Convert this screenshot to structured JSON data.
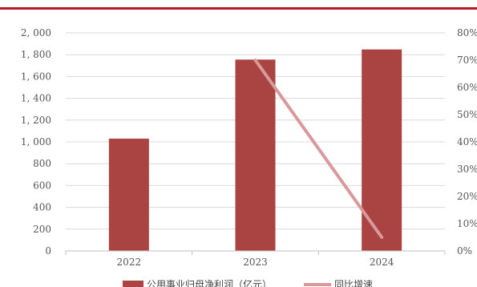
{
  "colors": {
    "header_rule": "#b01e24",
    "bar": "#a94442",
    "line": "#d9999b",
    "grid": "#d9d9d9",
    "text": "#555555"
  },
  "chart_data": {
    "type": "bar",
    "categories": [
      "2022",
      "2023",
      "2024"
    ],
    "series": [
      {
        "name": "公用事业归母净利润（亿元）",
        "type": "bar",
        "axis": "left",
        "values": [
          1030,
          1755,
          1848
        ]
      },
      {
        "name": "同比增速",
        "type": "line",
        "axis": "right",
        "values": [
          null,
          0.7,
          0.05
        ]
      }
    ],
    "y_left": {
      "min": 0,
      "max": 2000,
      "step": 200,
      "tick_labels": [
        "0",
        "200",
        "400",
        "600",
        "800",
        "1, 000",
        "1, 200",
        "1, 400",
        "1, 600",
        "1, 800",
        "2, 000"
      ]
    },
    "y_right": {
      "min": 0,
      "max": 0.8,
      "step": 0.1,
      "tick_labels": [
        "0%",
        "10%",
        "20%",
        "30%",
        "40%",
        "50%",
        "60%",
        "70%",
        "80%"
      ]
    },
    "grid": "horizontal",
    "legend": "bottom-center"
  }
}
